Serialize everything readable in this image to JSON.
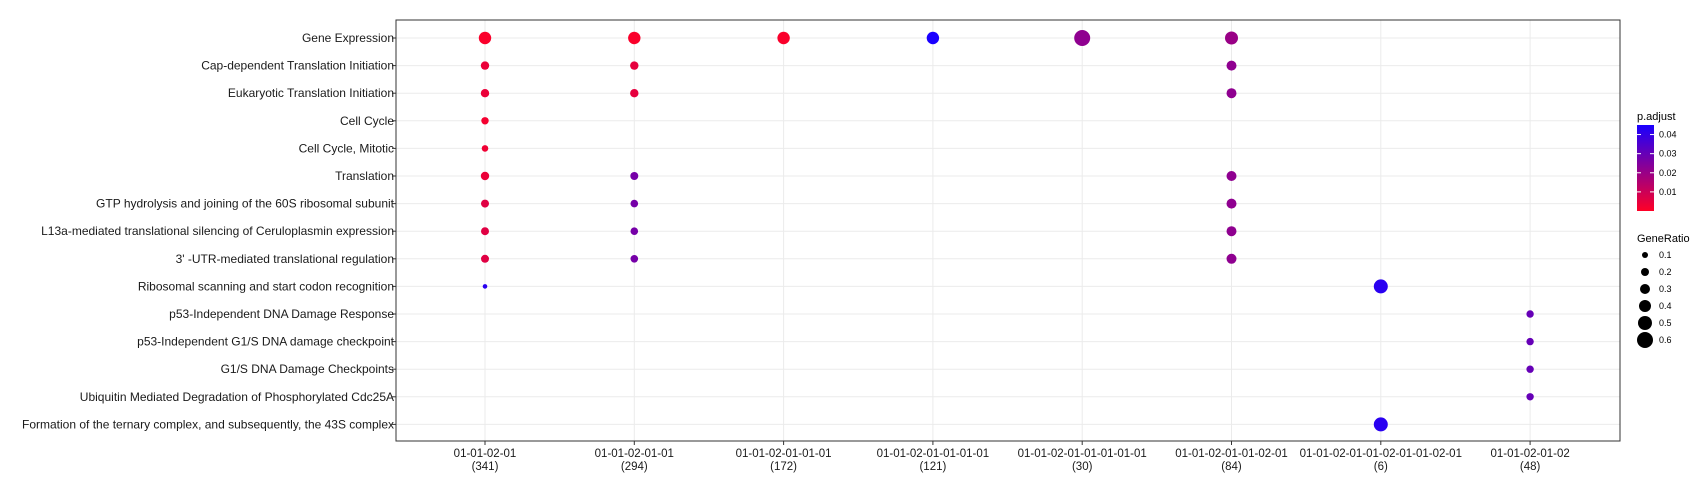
{
  "chart_data": {
    "type": "scatter",
    "title": "",
    "xlabel": "",
    "ylabel": "",
    "x_categories": [
      [
        "01-01-02-01",
        "(341)"
      ],
      [
        "01-01-02-01-01",
        "(294)"
      ],
      [
        "01-01-02-01-01-01",
        "(172)"
      ],
      [
        "01-01-02-01-01-01-01",
        "(121)"
      ],
      [
        "01-01-02-01-01-01-01-01",
        "(30)"
      ],
      [
        "01-01-02-01-01-02-01",
        "(84)"
      ],
      [
        "01-01-02-01-01-02-01-01-02-01",
        "(6)"
      ],
      [
        "01-01-02-01-02",
        "(48)"
      ]
    ],
    "y_categories": [
      "Gene Expression",
      "Cap-dependent Translation Initiation",
      "Eukaryotic Translation Initiation",
      "Cell Cycle",
      "Cell Cycle, Mitotic",
      "Translation",
      "GTP hydrolysis and joining of the 60S ribosomal subunit",
      "L13a-mediated translational silencing of Ceruloplasmin expression",
      "3' -UTR-mediated translational regulation",
      "Ribosomal scanning and start codon recognition",
      "p53-Independent DNA Damage Response",
      "p53-Independent G1/S DNA damage checkpoint",
      "G1/S DNA Damage Checkpoints",
      "Ubiquitin Mediated Degradation of Phosphorylated Cdc25A",
      "Formation of the ternary complex, and subsequently, the 43S complex"
    ],
    "points": [
      {
        "x": 0,
        "y": 0,
        "gene_ratio": 0.42,
        "p_adjust": 0.001
      },
      {
        "x": 0,
        "y": 1,
        "gene_ratio": 0.22,
        "p_adjust": 0.004
      },
      {
        "x": 0,
        "y": 2,
        "gene_ratio": 0.22,
        "p_adjust": 0.004
      },
      {
        "x": 0,
        "y": 3,
        "gene_ratio": 0.17,
        "p_adjust": 0.002
      },
      {
        "x": 0,
        "y": 4,
        "gene_ratio": 0.13,
        "p_adjust": 0.003
      },
      {
        "x": 0,
        "y": 5,
        "gene_ratio": 0.22,
        "p_adjust": 0.004
      },
      {
        "x": 0,
        "y": 6,
        "gene_ratio": 0.2,
        "p_adjust": 0.006
      },
      {
        "x": 0,
        "y": 7,
        "gene_ratio": 0.2,
        "p_adjust": 0.006
      },
      {
        "x": 0,
        "y": 8,
        "gene_ratio": 0.2,
        "p_adjust": 0.006
      },
      {
        "x": 0,
        "y": 9,
        "gene_ratio": 0.03,
        "p_adjust": 0.042
      },
      {
        "x": 1,
        "y": 0,
        "gene_ratio": 0.42,
        "p_adjust": 0.001
      },
      {
        "x": 1,
        "y": 1,
        "gene_ratio": 0.22,
        "p_adjust": 0.005
      },
      {
        "x": 1,
        "y": 2,
        "gene_ratio": 0.22,
        "p_adjust": 0.005
      },
      {
        "x": 1,
        "y": 5,
        "gene_ratio": 0.2,
        "p_adjust": 0.027
      },
      {
        "x": 1,
        "y": 6,
        "gene_ratio": 0.18,
        "p_adjust": 0.027
      },
      {
        "x": 1,
        "y": 7,
        "gene_ratio": 0.18,
        "p_adjust": 0.027
      },
      {
        "x": 1,
        "y": 8,
        "gene_ratio": 0.18,
        "p_adjust": 0.027
      },
      {
        "x": 2,
        "y": 0,
        "gene_ratio": 0.42,
        "p_adjust": 0.001
      },
      {
        "x": 3,
        "y": 0,
        "gene_ratio": 0.42,
        "p_adjust": 0.045
      },
      {
        "x": 4,
        "y": 0,
        "gene_ratio": 0.6,
        "p_adjust": 0.022
      },
      {
        "x": 5,
        "y": 0,
        "gene_ratio": 0.45,
        "p_adjust": 0.02
      },
      {
        "x": 5,
        "y": 1,
        "gene_ratio": 0.3,
        "p_adjust": 0.022
      },
      {
        "x": 5,
        "y": 2,
        "gene_ratio": 0.3,
        "p_adjust": 0.022
      },
      {
        "x": 5,
        "y": 5,
        "gene_ratio": 0.3,
        "p_adjust": 0.022
      },
      {
        "x": 5,
        "y": 6,
        "gene_ratio": 0.3,
        "p_adjust": 0.022
      },
      {
        "x": 5,
        "y": 7,
        "gene_ratio": 0.3,
        "p_adjust": 0.022
      },
      {
        "x": 5,
        "y": 8,
        "gene_ratio": 0.3,
        "p_adjust": 0.022
      },
      {
        "x": 6,
        "y": 9,
        "gene_ratio": 0.5,
        "p_adjust": 0.042
      },
      {
        "x": 6,
        "y": 14,
        "gene_ratio": 0.5,
        "p_adjust": 0.042
      },
      {
        "x": 7,
        "y": 10,
        "gene_ratio": 0.17,
        "p_adjust": 0.03
      },
      {
        "x": 7,
        "y": 11,
        "gene_ratio": 0.17,
        "p_adjust": 0.03
      },
      {
        "x": 7,
        "y": 12,
        "gene_ratio": 0.17,
        "p_adjust": 0.03
      },
      {
        "x": 7,
        "y": 13,
        "gene_ratio": 0.17,
        "p_adjust": 0.03
      }
    ],
    "color_legend": {
      "title": "p.adjust",
      "ticks": [
        0.01,
        0.02,
        0.03,
        0.04
      ],
      "tick_labels": [
        "0.01",
        "0.02",
        "0.03",
        "0.04"
      ],
      "range": [
        0,
        0.045
      ],
      "low_color": "#ff0026",
      "high_color": "#1a00ff"
    },
    "size_legend": {
      "title": "GeneRatio",
      "values": [
        0.1,
        0.2,
        0.3,
        0.4,
        0.5,
        0.6
      ],
      "labels": [
        "0.1",
        "0.2",
        "0.3",
        "0.4",
        "0.5",
        "0.6"
      ]
    },
    "grid": true,
    "legend_position": "right"
  }
}
